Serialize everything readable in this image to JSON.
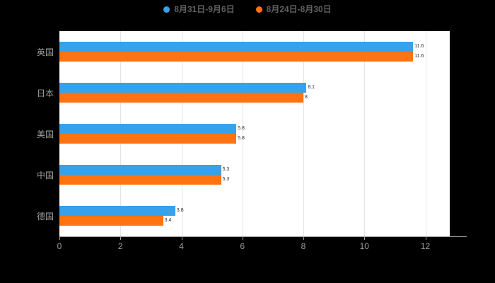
{
  "legend": {
    "items": [
      {
        "label": "8月31日-9月6日",
        "color": "#36a2eb"
      },
      {
        "label": "8月24日-8月30日",
        "color": "#ff7311"
      }
    ]
  },
  "chart_data": {
    "type": "bar",
    "orientation": "horizontal",
    "title": "",
    "xlabel": "",
    "ylabel": "",
    "categories": [
      "英国",
      "日本",
      "美国",
      "中国",
      "德国"
    ],
    "series": [
      {
        "name": "8月31日-9月6日",
        "color": "#36a2eb",
        "values": [
          11.6,
          8.1,
          5.8,
          5.3,
          3.8
        ]
      },
      {
        "name": "8月24日-8月30日",
        "color": "#ff7311",
        "values": [
          11.6,
          8.0,
          5.8,
          5.3,
          3.4
        ]
      }
    ],
    "xlim": [
      0,
      12.8
    ],
    "xticks": [
      0,
      2,
      4,
      6,
      8,
      10,
      12
    ],
    "grid": true,
    "legend_position": "top"
  },
  "colors": {
    "background": "#000000",
    "plot_background": "#ffffff",
    "gridline": "#e3e3e3",
    "axis_text": "#9e9e9e",
    "legend_text": "#616161"
  }
}
